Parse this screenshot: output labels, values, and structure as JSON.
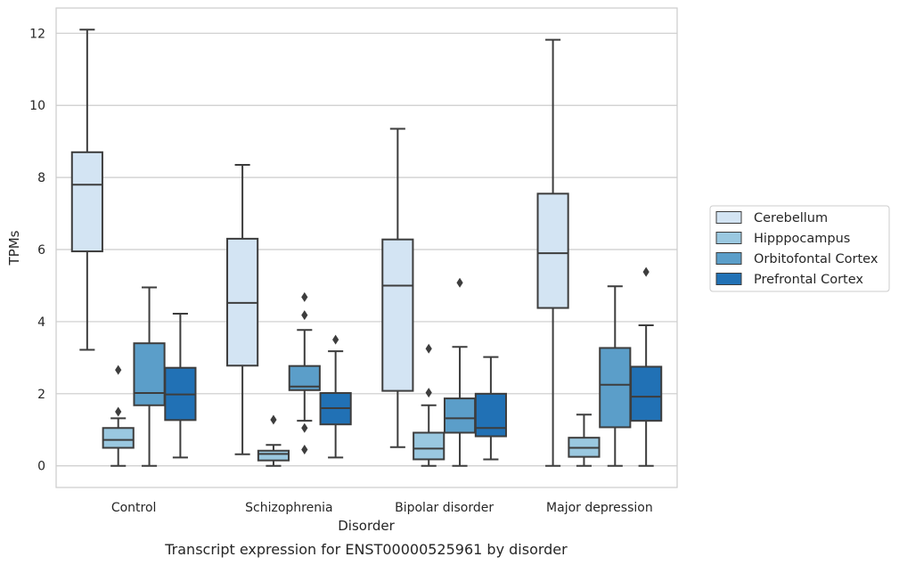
{
  "chart_data": {
    "type": "boxplot",
    "title": "",
    "caption": "Transcript expression for ENST00000525961 by disorder",
    "xlabel": "Disorder",
    "ylabel": "TPMs",
    "ylim": [
      -0.6,
      12.7
    ],
    "yticks": [
      0,
      2,
      4,
      6,
      8,
      10,
      12
    ],
    "grid": "horizontal",
    "legend_position": "right",
    "categories": [
      "Control",
      "Schizophrenia",
      "Bipolar disorder",
      "Major depression"
    ],
    "series": [
      {
        "name": "Cerebellum",
        "color": "#d3e4f3",
        "boxes": [
          {
            "whisker_low": 3.22,
            "q1": 5.95,
            "median": 7.8,
            "q3": 8.7,
            "whisker_high": 12.1,
            "outliers": []
          },
          {
            "whisker_low": 0.32,
            "q1": 2.78,
            "median": 4.52,
            "q3": 6.3,
            "whisker_high": 8.35,
            "outliers": []
          },
          {
            "whisker_low": 0.52,
            "q1": 2.08,
            "median": 5.0,
            "q3": 6.28,
            "whisker_high": 9.35,
            "outliers": []
          },
          {
            "whisker_low": 0.0,
            "q1": 4.38,
            "median": 5.9,
            "q3": 7.55,
            "whisker_high": 11.82,
            "outliers": []
          }
        ]
      },
      {
        "name": "Hipppocampus",
        "color": "#9ac8e0",
        "boxes": [
          {
            "whisker_low": 0.0,
            "q1": 0.5,
            "median": 0.72,
            "q3": 1.05,
            "whisker_high": 1.32,
            "outliers": [
              1.5,
              2.66
            ]
          },
          {
            "whisker_low": 0.0,
            "q1": 0.15,
            "median": 0.33,
            "q3": 0.42,
            "whisker_high": 0.58,
            "outliers": [
              1.28
            ]
          },
          {
            "whisker_low": 0.0,
            "q1": 0.18,
            "median": 0.48,
            "q3": 0.92,
            "whisker_high": 1.68,
            "outliers": [
              2.03,
              3.25
            ]
          },
          {
            "whisker_low": 0.0,
            "q1": 0.25,
            "median": 0.5,
            "q3": 0.78,
            "whisker_high": 1.42,
            "outliers": []
          }
        ]
      },
      {
        "name": "Orbitofontal Cortex",
        "color": "#5b9ec9",
        "boxes": [
          {
            "whisker_low": 0.0,
            "q1": 1.68,
            "median": 2.02,
            "q3": 3.4,
            "whisker_high": 4.95,
            "outliers": []
          },
          {
            "whisker_low": 1.25,
            "q1": 2.1,
            "median": 2.2,
            "q3": 2.77,
            "whisker_high": 3.77,
            "outliers": [
              0.45,
              1.05,
              4.18,
              4.68
            ]
          },
          {
            "whisker_low": 0.0,
            "q1": 0.92,
            "median": 1.32,
            "q3": 1.87,
            "whisker_high": 3.3,
            "outliers": [
              5.08
            ]
          },
          {
            "whisker_low": 0.0,
            "q1": 1.07,
            "median": 2.25,
            "q3": 3.27,
            "whisker_high": 4.98,
            "outliers": []
          }
        ]
      },
      {
        "name": "Prefrontal Cortex",
        "color": "#2171b5",
        "boxes": [
          {
            "whisker_low": 0.23,
            "q1": 1.27,
            "median": 1.98,
            "q3": 2.72,
            "whisker_high": 4.22,
            "outliers": []
          },
          {
            "whisker_low": 0.23,
            "q1": 1.15,
            "median": 1.6,
            "q3": 2.02,
            "whisker_high": 3.18,
            "outliers": [
              3.5
            ]
          },
          {
            "whisker_low": 0.18,
            "q1": 0.82,
            "median": 1.05,
            "q3": 2.0,
            "whisker_high": 3.02,
            "outliers": []
          },
          {
            "whisker_low": 0.0,
            "q1": 1.25,
            "median": 1.92,
            "q3": 2.75,
            "whisker_high": 3.9,
            "outliers": [
              5.38
            ]
          }
        ]
      }
    ]
  }
}
